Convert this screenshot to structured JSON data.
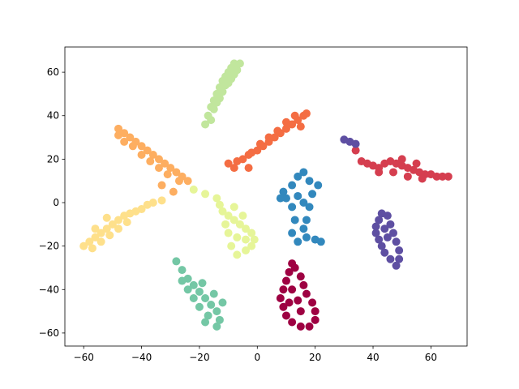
{
  "chart_data": {
    "type": "scatter",
    "xlim": [
      -66.5,
      72.5
    ],
    "ylim": [
      -66,
      71.6
    ],
    "xticks": [
      {
        "value": -60,
        "label": "−60"
      },
      {
        "value": -40,
        "label": "−40"
      },
      {
        "value": -20,
        "label": "−20"
      },
      0,
      20,
      40,
      60
    ],
    "yticks": [
      {
        "value": -60,
        "label": "−60"
      },
      {
        "value": -40,
        "label": "−40"
      },
      {
        "value": -20,
        "label": "−20"
      },
      0,
      20,
      40,
      60
    ],
    "grid": false,
    "series": [
      {
        "color": "#9e0142",
        "x": [
          12,
          11,
          10,
          9,
          8,
          9,
          10,
          12,
          15,
          18,
          20,
          20,
          19,
          17,
          16,
          15,
          13,
          14,
          12,
          15,
          11
        ],
        "y": [
          -28,
          -32,
          -36,
          -40,
          -44,
          -48,
          -52,
          -55,
          -57,
          -57,
          -54,
          -50,
          -46,
          -42,
          -38,
          -34,
          -30,
          -45,
          -40,
          -50,
          -46
        ]
      },
      {
        "color": "#d53e4f",
        "x": [
          36,
          38,
          40,
          42,
          44,
          46,
          48,
          50,
          52,
          54,
          56,
          58,
          60,
          62,
          64,
          66,
          47,
          52,
          57,
          42,
          50,
          55,
          34
        ],
        "y": [
          19,
          18,
          17,
          16,
          18,
          19,
          18,
          17,
          16,
          15,
          14,
          13,
          13,
          12,
          12,
          12,
          14,
          12,
          11,
          14,
          20,
          18,
          24
        ]
      },
      {
        "color": "#f46d43",
        "x": [
          -10,
          -7,
          -5,
          -3,
          0,
          2,
          4,
          6,
          8,
          10,
          12,
          14,
          16,
          17,
          13,
          10,
          7,
          4,
          1,
          -2,
          15,
          -8,
          -3
        ],
        "y": [
          18,
          19,
          20,
          22,
          24,
          26,
          28,
          30,
          32,
          34,
          36,
          38,
          40,
          41,
          40,
          37,
          33,
          30,
          27,
          23,
          35,
          16,
          16
        ]
      },
      {
        "color": "#fdae61",
        "x": [
          -48,
          -48,
          -46,
          -44,
          -42,
          -40,
          -38,
          -36,
          -34,
          -32,
          -30,
          -28,
          -26,
          -24,
          -46,
          -43,
          -40,
          -37,
          -34,
          -31,
          -27,
          -33,
          -29
        ],
        "y": [
          34,
          31,
          32,
          30,
          28,
          26,
          24,
          22,
          20,
          18,
          16,
          14,
          12,
          10,
          28,
          26,
          22,
          19,
          16,
          13,
          10,
          8,
          5
        ]
      },
      {
        "color": "#fee08b",
        "x": [
          -60,
          -58,
          -56,
          -54,
          -52,
          -50,
          -48,
          -46,
          -44,
          -42,
          -40,
          -38,
          -36,
          -33,
          -57,
          -54,
          -51,
          -48,
          -45,
          -56,
          -52
        ],
        "y": [
          -20,
          -18,
          -16,
          -14,
          -12,
          -10,
          -8,
          -6,
          -5,
          -4,
          -3,
          -1,
          0,
          1,
          -21,
          -18,
          -15,
          -12,
          -9,
          -12,
          -7
        ]
      },
      {
        "color": "#e6f598",
        "x": [
          -12,
          -10,
          -8,
          -6,
          -4,
          -2,
          -1,
          -2,
          -4,
          -7,
          -9,
          -10,
          -11,
          -7,
          -4,
          -5,
          -14,
          -18,
          -22,
          -13,
          -8
        ],
        "y": [
          -4,
          -6,
          -8,
          -10,
          -12,
          -14,
          -17,
          -20,
          -22,
          -24,
          -20,
          -14,
          -10,
          -16,
          -17,
          -6,
          2,
          4,
          6,
          -1,
          -2
        ]
      },
      {
        "color": "#c1e69d",
        "x": [
          -18,
          -17,
          -16,
          -15,
          -14,
          -13,
          -12,
          -11,
          -10,
          -9,
          -8,
          -6,
          -7,
          -9,
          -11,
          -13,
          -15,
          -16,
          -12,
          -10,
          -8,
          -14
        ],
        "y": [
          36,
          40,
          44,
          47,
          50,
          53,
          56,
          58,
          60,
          62,
          64,
          64,
          61,
          57,
          54,
          48,
          43,
          38,
          51,
          55,
          59,
          46
        ]
      },
      {
        "color": "#74c7a5",
        "x": [
          -28,
          -26,
          -24,
          -22,
          -20,
          -18,
          -16,
          -14,
          -13,
          -14,
          -17,
          -20,
          -22,
          -24,
          -19,
          -15,
          -12,
          -18,
          -26
        ],
        "y": [
          -27,
          -31,
          -35,
          -38,
          -41,
          -44,
          -47,
          -50,
          -54,
          -57,
          -52,
          -48,
          -44,
          -40,
          -37,
          -42,
          -46,
          -55,
          -36
        ]
      },
      {
        "color": "#3288bd",
        "x": [
          9,
          10,
          12,
          14,
          16,
          18,
          19,
          18,
          17,
          16,
          17,
          14,
          12,
          13,
          12,
          14,
          16,
          20,
          22,
          8,
          21
        ],
        "y": [
          5,
          2,
          8,
          12,
          14,
          10,
          4,
          -2,
          -8,
          -12,
          -16,
          -18,
          -14,
          -8,
          -2,
          3,
          0,
          -17,
          -18,
          2,
          8
        ]
      },
      {
        "color": "#5e4fa2",
        "x": [
          43,
          42,
          41,
          41,
          42,
          43,
          44,
          46,
          48,
          49,
          49,
          48,
          47,
          46,
          45,
          45,
          44,
          30,
          32,
          34
        ],
        "y": [
          -5,
          -8,
          -11,
          -14,
          -17,
          -20,
          -23,
          -26,
          -29,
          -26,
          -22,
          -18,
          -14,
          -10,
          -6,
          -16,
          -12,
          29,
          28,
          27
        ]
      }
    ]
  }
}
